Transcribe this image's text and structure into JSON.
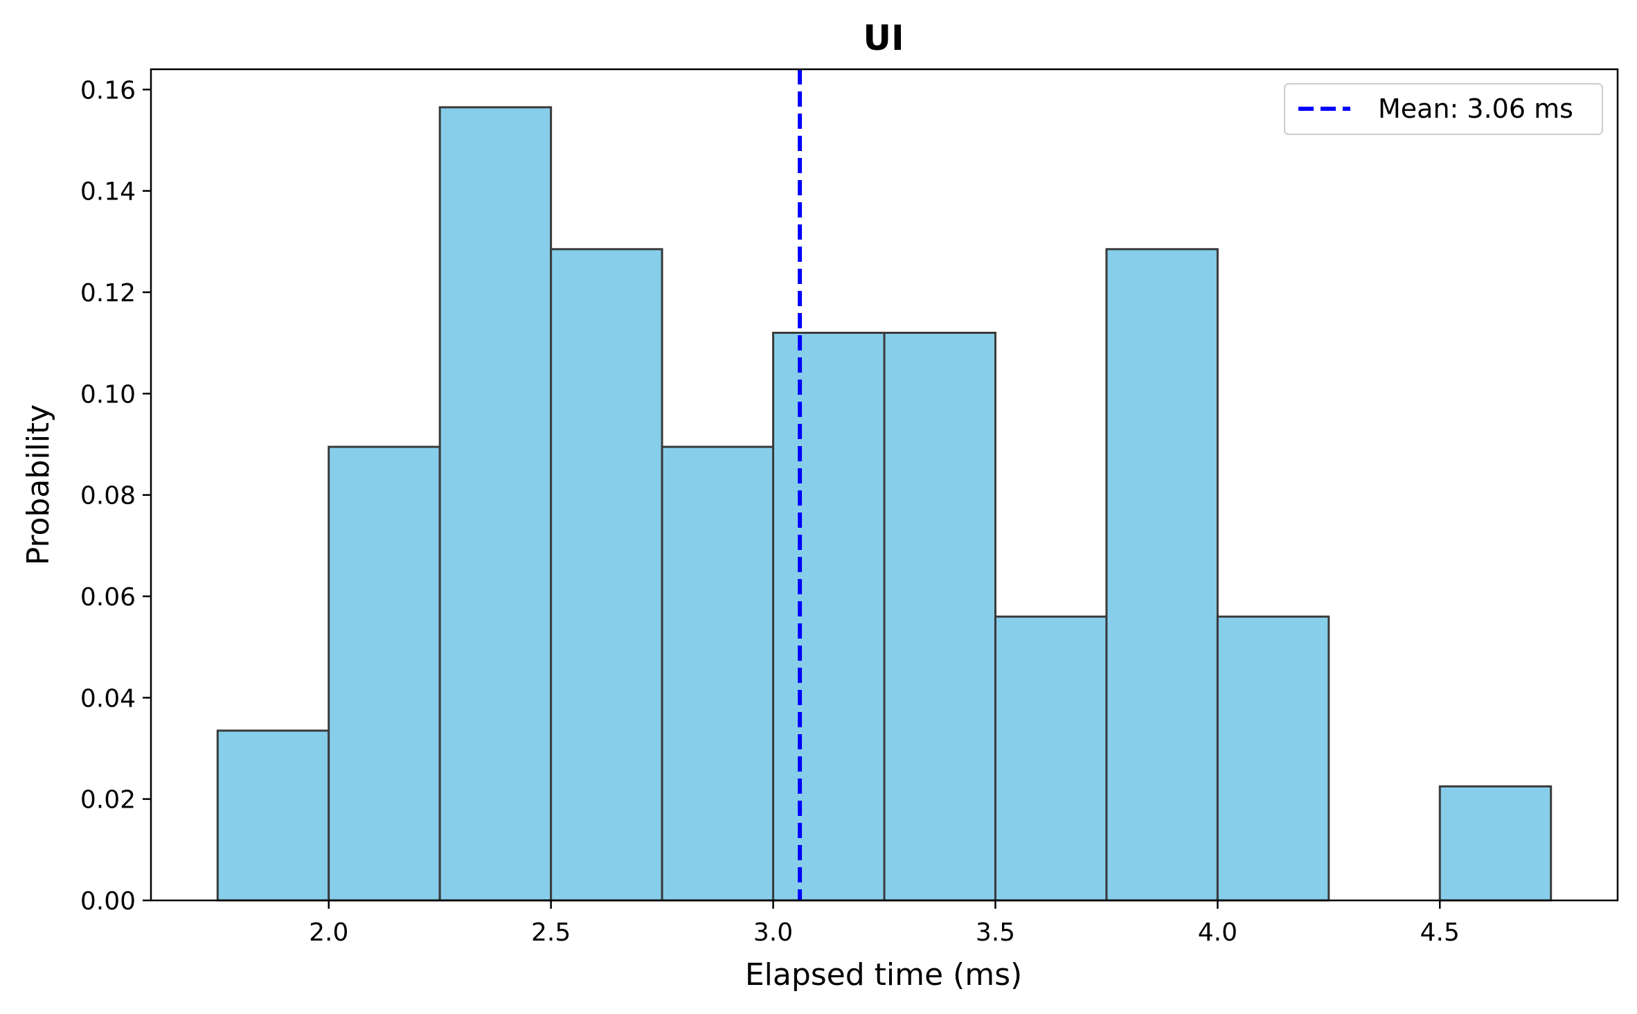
{
  "chart_data": {
    "type": "bar",
    "title": "UI",
    "xlabel": "Elapsed time (ms)",
    "ylabel": "Probability",
    "xlim": [
      1.6,
      4.9
    ],
    "ylim": [
      0,
      0.164
    ],
    "x_ticks": [
      2.0,
      2.5,
      3.0,
      3.5,
      4.0,
      4.5
    ],
    "x_tick_labels": [
      "2.0",
      "2.5",
      "3.0",
      "3.5",
      "4.0",
      "4.5"
    ],
    "y_ticks": [
      0,
      0.02,
      0.04,
      0.06,
      0.08,
      0.1,
      0.12,
      0.14,
      0.16
    ],
    "y_tick_labels": [
      "0.00",
      "0.02",
      "0.04",
      "0.06",
      "0.08",
      "0.10",
      "0.12",
      "0.14",
      "0.16"
    ],
    "bin_width": 0.25,
    "bins": [
      {
        "x0": 1.75,
        "x1": 2.0,
        "value": 0.0335
      },
      {
        "x0": 2.0,
        "x1": 2.25,
        "value": 0.0895
      },
      {
        "x0": 2.25,
        "x1": 2.5,
        "value": 0.1565
      },
      {
        "x0": 2.5,
        "x1": 2.75,
        "value": 0.1285
      },
      {
        "x0": 2.75,
        "x1": 3.0,
        "value": 0.0895
      },
      {
        "x0": 3.0,
        "x1": 3.25,
        "value": 0.112
      },
      {
        "x0": 3.25,
        "x1": 3.5,
        "value": 0.112
      },
      {
        "x0": 3.5,
        "x1": 3.75,
        "value": 0.056
      },
      {
        "x0": 3.75,
        "x1": 4.0,
        "value": 0.1285
      },
      {
        "x0": 4.0,
        "x1": 4.25,
        "value": 0.056
      },
      {
        "x0": 4.25,
        "x1": 4.5,
        "value": 0.0
      },
      {
        "x0": 4.5,
        "x1": 4.75,
        "value": 0.0225
      }
    ],
    "mean_line": {
      "value": 3.06,
      "color": "#0000ff",
      "style": "dashed"
    },
    "legend": {
      "label": "Mean: 3.06 ms",
      "position": "top-right"
    },
    "bar_color": "#87ceeb",
    "bar_edge_color": "#3a3a3a",
    "grid": false
  }
}
